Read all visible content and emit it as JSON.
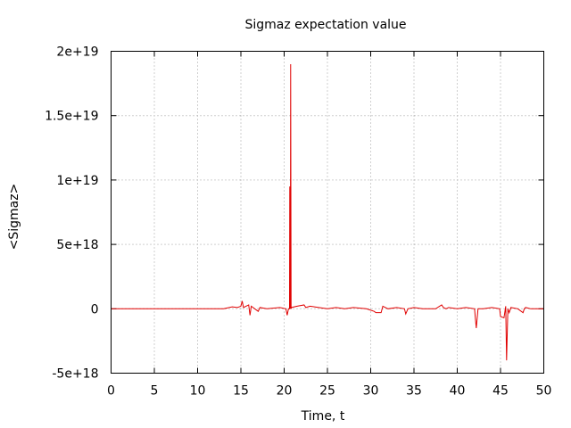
{
  "chart_data": {
    "type": "line",
    "title": "Sigmaz expectation value",
    "xlabel": "Time, t",
    "ylabel": "<Sigmaz>",
    "xlim": [
      0,
      50
    ],
    "ylim": [
      -5e+18,
      2e+19
    ],
    "xticks": [
      0,
      5,
      10,
      15,
      20,
      25,
      30,
      35,
      40,
      45,
      50
    ],
    "xtick_labels": [
      "0",
      "5",
      "10",
      "15",
      "20",
      "25",
      "30",
      "35",
      "40",
      "45",
      "50"
    ],
    "yticks": [
      -5e+18,
      0,
      5e+18,
      1e+19,
      1.5e+19,
      2e+19
    ],
    "ytick_labels": [
      "-5e+18",
      "0",
      "5e+18",
      "1e+19",
      "1.5e+19",
      "2e+19"
    ],
    "grid": true,
    "line_color": "#e00000",
    "series": [
      {
        "x": [
          0,
          13,
          14.0,
          14.6,
          15.0,
          15.15,
          15.3,
          15.9,
          16.05,
          16.2,
          17.0,
          17.2,
          18.0,
          19.5,
          20.2,
          20.35,
          20.5,
          20.62,
          20.65,
          20.72,
          20.75,
          20.8,
          20.85,
          21.5,
          22.3,
          22.5,
          23.0,
          24.0,
          25.0,
          26.0,
          27.0,
          28.0,
          29.5,
          30.4,
          30.6,
          31.2,
          31.4,
          32.0,
          33.0,
          33.9,
          34.05,
          34.3,
          35.0,
          36.0,
          37.5,
          38.2,
          38.4,
          38.7,
          39.0,
          40.0,
          41.0,
          42.0,
          42.1,
          42.2,
          42.4,
          43.0,
          44.0,
          44.9,
          45.0,
          45.4,
          45.6,
          45.7,
          45.85,
          46.0,
          46.2,
          47.0,
          47.6,
          47.75,
          47.9,
          48.5,
          49.0,
          50.0
        ],
        "y": [
          0,
          0,
          1.5e+17,
          1e+17,
          2e+17,
          6e+17,
          1e+17,
          3e+17,
          -5e+17,
          2e+17,
          -2e+17,
          1e+17,
          0,
          1e+17,
          0,
          -5e+17,
          0,
          0,
          9.5e+18,
          0,
          1.9e+19,
          0,
          1e+17,
          2e+17,
          3e+17,
          1e+17,
          2e+17,
          1e+17,
          0,
          1e+17,
          0,
          1e+17,
          0,
          -2e+17,
          -3e+17,
          -3e+17,
          2e+17,
          0,
          1e+17,
          0,
          -4e+17,
          0,
          1e+17,
          0,
          0,
          3e+17,
          1e+17,
          0,
          1e+17,
          0,
          1e+17,
          0,
          -8e+17,
          -1.5e+18,
          0,
          0,
          1e+17,
          0,
          -6e+17,
          -7e+17,
          2e+17,
          -4e+18,
          0,
          -3e+17,
          1e+17,
          0,
          -3e+17,
          0,
          1e+17,
          0,
          0,
          0
        ]
      }
    ]
  }
}
